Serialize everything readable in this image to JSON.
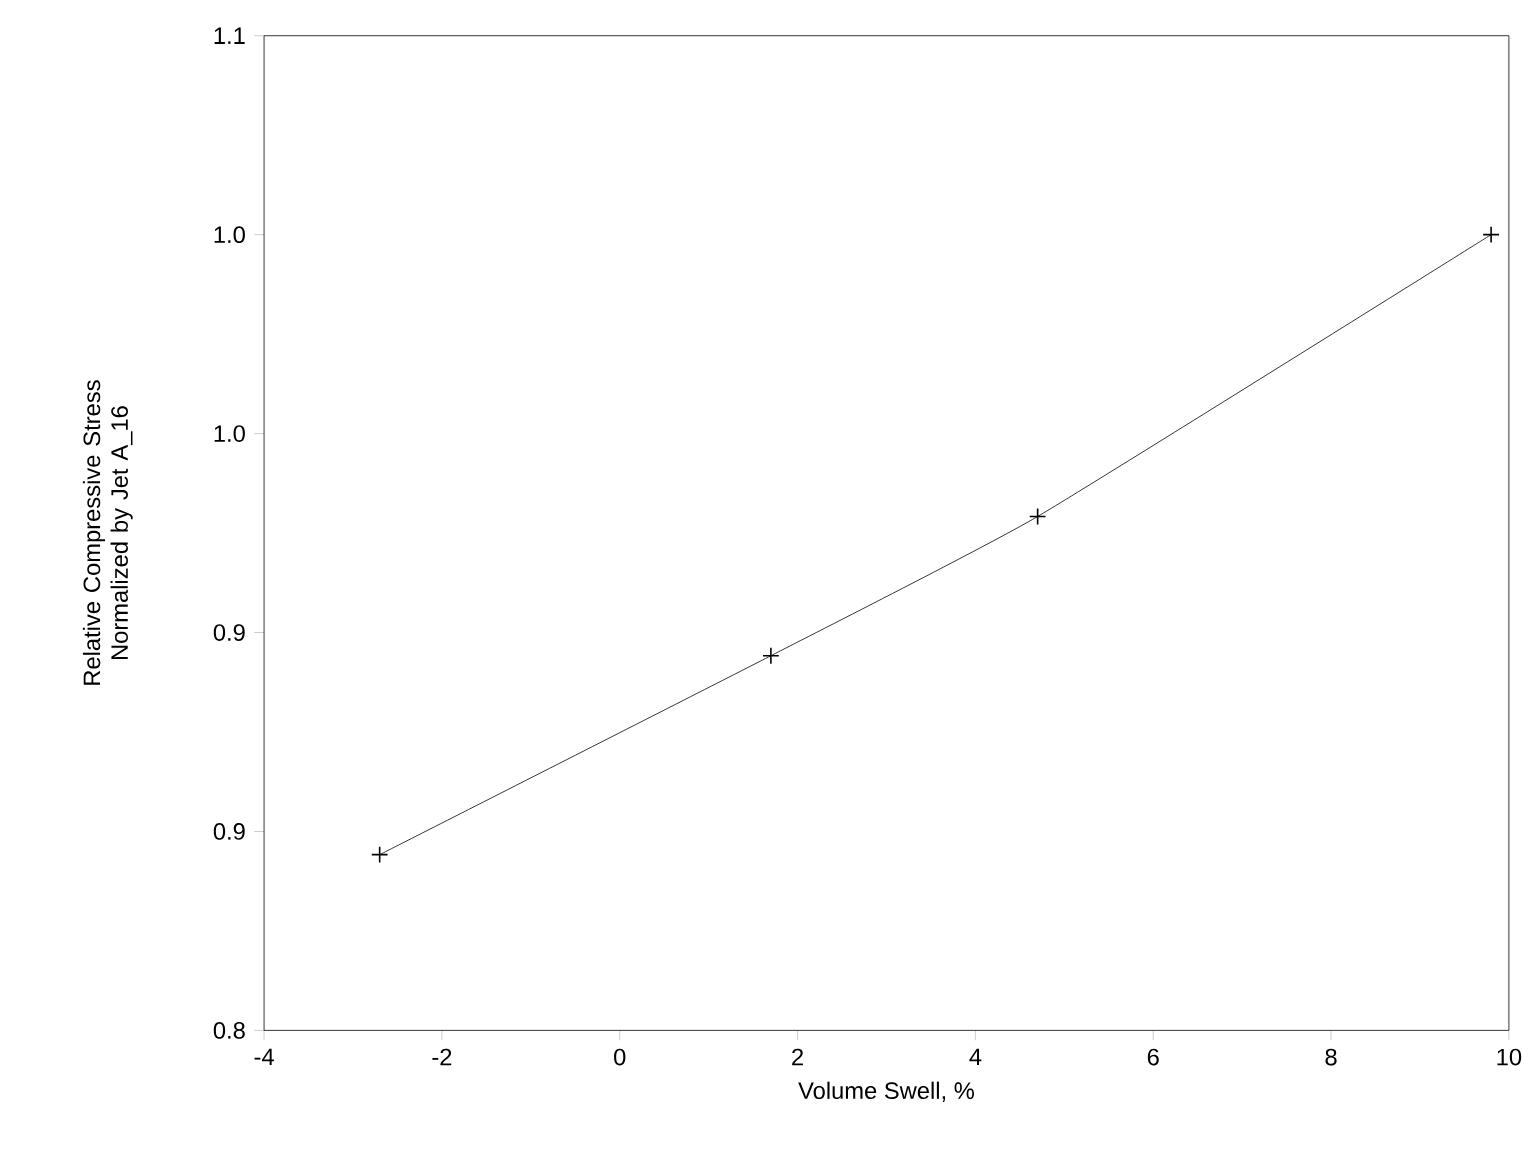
{
  "chart_data": {
    "type": "line",
    "xlabel": "Volume Swell, %",
    "ylabel": "Relative Compressive Stress Normalized by Jet A_16",
    "x": [
      -2.7,
      1.7,
      4.7,
      9.8
    ],
    "values": [
      0.853,
      0.913,
      0.955,
      1.04
    ],
    "color": "#000000",
    "marker": "cross",
    "line_style": "solid",
    "grid": false,
    "xlim": [
      -4,
      10
    ],
    "xticks": [
      -4,
      -2,
      0,
      2,
      4,
      6,
      8,
      10
    ],
    "ylim": [
      0.8,
      1.1
    ],
    "yticks": [
      0.8,
      {
        "value": 0.86,
        "label": "0.9"
      },
      {
        "value": 0.92,
        "label": "0.9"
      },
      {
        "value": 0.98,
        "label": "1.0"
      },
      {
        "value": 1.04,
        "label": "1.0"
      },
      1.1
    ]
  }
}
